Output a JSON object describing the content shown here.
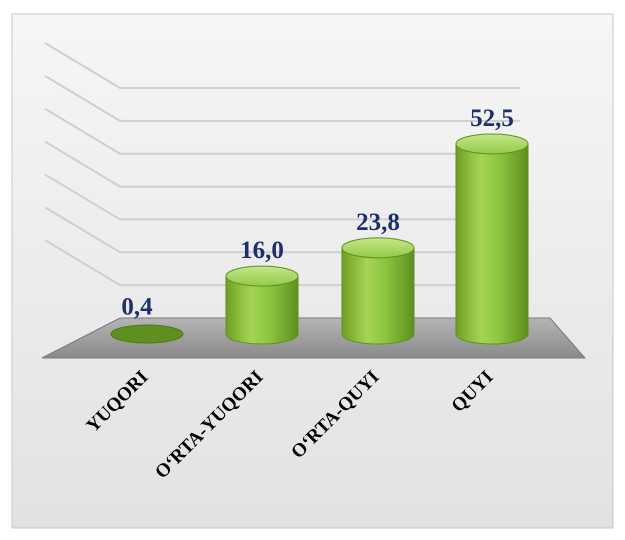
{
  "chart_data": {
    "type": "bar",
    "categories": [
      "YUQORI",
      "O‘RTA-YUQORI",
      "O‘RTA-QUYI",
      "QUYI"
    ],
    "values": [
      0.4,
      16.0,
      23.8,
      52.5
    ],
    "value_labels": [
      "0,4",
      "16,0",
      "23,8",
      "52,5"
    ],
    "ylim": [
      0,
      60
    ],
    "grid": true,
    "legend": "none",
    "style": "3d-cylinder",
    "colors": {
      "bar": "#8cc63f",
      "bar_dark": "#5f8f1f",
      "floor": "#9e9e9e",
      "grid": "#cfcfcf",
      "label": "#1f2f6b"
    }
  }
}
